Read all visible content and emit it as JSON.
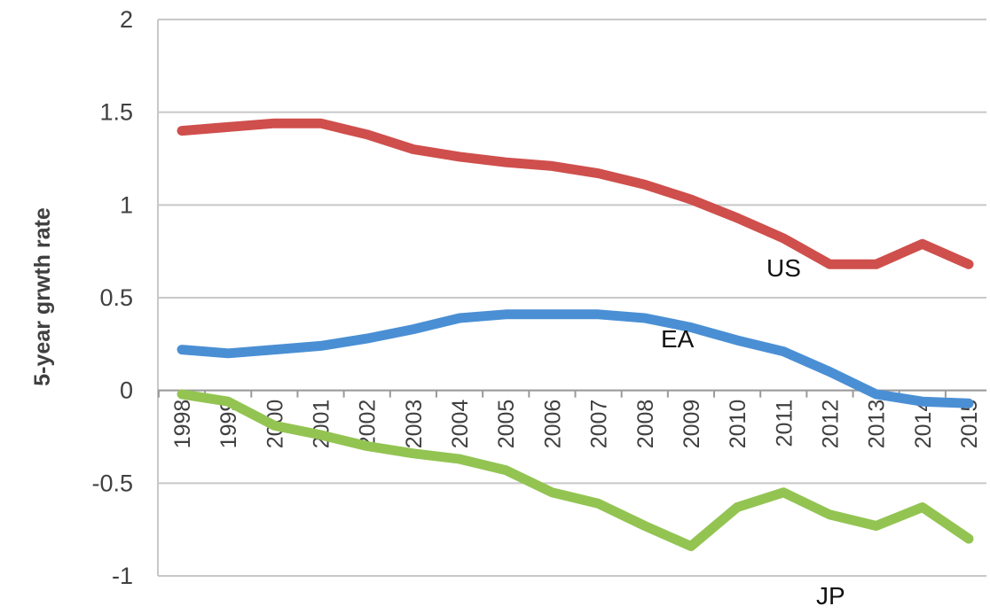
{
  "chart_data": {
    "type": "line",
    "ylabel": "5-year grwth rate",
    "xlabel": "",
    "ylim": [
      -1,
      2
    ],
    "yticks": [
      2,
      1.5,
      1,
      0.5,
      0,
      -0.5,
      -1
    ],
    "ytick_labels": [
      "2",
      "1.5",
      "1",
      "0.5",
      "0",
      "-0.5",
      "-1"
    ],
    "categories": [
      "1998",
      "1999",
      "2000",
      "2001",
      "2002",
      "2003",
      "2004",
      "2005",
      "2006",
      "2007",
      "2008",
      "2009",
      "2010",
      "2011",
      "2012",
      "2013",
      "2014",
      "2015"
    ],
    "grid": true,
    "series": [
      {
        "name": "US",
        "color": "#cf4f4c",
        "values": [
          1.4,
          1.42,
          1.44,
          1.44,
          1.38,
          1.3,
          1.26,
          1.23,
          1.21,
          1.17,
          1.11,
          1.03,
          0.93,
          0.82,
          0.68,
          0.68,
          0.79,
          0.68
        ]
      },
      {
        "name": "EA",
        "color": "#4a8fd4",
        "values": [
          0.22,
          0.2,
          0.22,
          0.24,
          0.28,
          0.33,
          0.39,
          0.41,
          0.41,
          0.41,
          0.39,
          0.34,
          0.27,
          0.21,
          0.1,
          -0.02,
          -0.06,
          -0.07
        ]
      },
      {
        "name": "JP",
        "color": "#93c452",
        "values": [
          -0.02,
          -0.06,
          -0.19,
          -0.24,
          -0.3,
          -0.34,
          -0.37,
          -0.43,
          -0.55,
          -0.61,
          -0.73,
          -0.84,
          -0.63,
          -0.55,
          -0.67,
          -0.73,
          -0.63,
          -0.8
        ]
      }
    ]
  }
}
